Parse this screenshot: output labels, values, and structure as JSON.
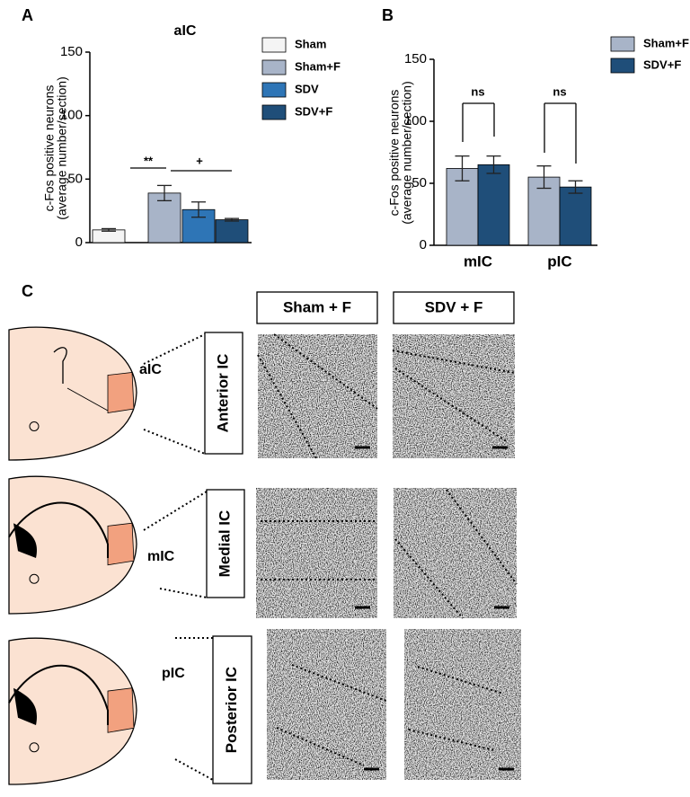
{
  "chart_data": [
    {
      "type": "bar",
      "panel_label": "A",
      "title": "aIC",
      "ylabel": [
        "c-Fos positive neurons",
        "(average number/section)"
      ],
      "categories": [
        null
      ],
      "series": [
        {
          "name": "Sham",
          "color": "#f4f4f4",
          "values": [
            10
          ],
          "errors": [
            1
          ]
        },
        {
          "name": "Sham+F",
          "color": "#a8b4c8",
          "values": [
            39
          ],
          "errors": [
            6
          ]
        },
        {
          "name": "SDV",
          "color": "#2e75b6",
          "values": [
            26
          ],
          "errors": [
            6
          ]
        },
        {
          "name": "SDV+F",
          "color": "#1f4e79",
          "values": [
            18
          ],
          "errors": [
            1
          ]
        }
      ],
      "ylim": [
        0,
        150
      ],
      "yticks": [
        0,
        50,
        100,
        150
      ],
      "annotations": [
        "**",
        "+"
      ]
    },
    {
      "type": "bar",
      "panel_label": "B",
      "ylabel": [
        "c-Fos positive neurons",
        "(average number/section)"
      ],
      "categories": [
        "mIC",
        "pIC"
      ],
      "series": [
        {
          "name": "Sham+F",
          "color": "#a8b4c8",
          "values": [
            62,
            55
          ],
          "errors": [
            10,
            9
          ]
        },
        {
          "name": "SDV+F",
          "color": "#1f4e79",
          "values": [
            65,
            47
          ],
          "errors": [
            7,
            5
          ]
        }
      ],
      "ylim": [
        0,
        150
      ],
      "yticks": [
        0,
        50,
        100,
        150
      ],
      "annotations": [
        "ns",
        "ns"
      ]
    }
  ],
  "panel_c": {
    "label": "C",
    "columns": [
      "Sham + F",
      "SDV + F"
    ],
    "rows": [
      {
        "region": "aIC",
        "section": "Anterior IC"
      },
      {
        "region": "mIC",
        "section": "Medial IC"
      },
      {
        "region": "pIC",
        "section": "Posterior IC"
      }
    ]
  }
}
